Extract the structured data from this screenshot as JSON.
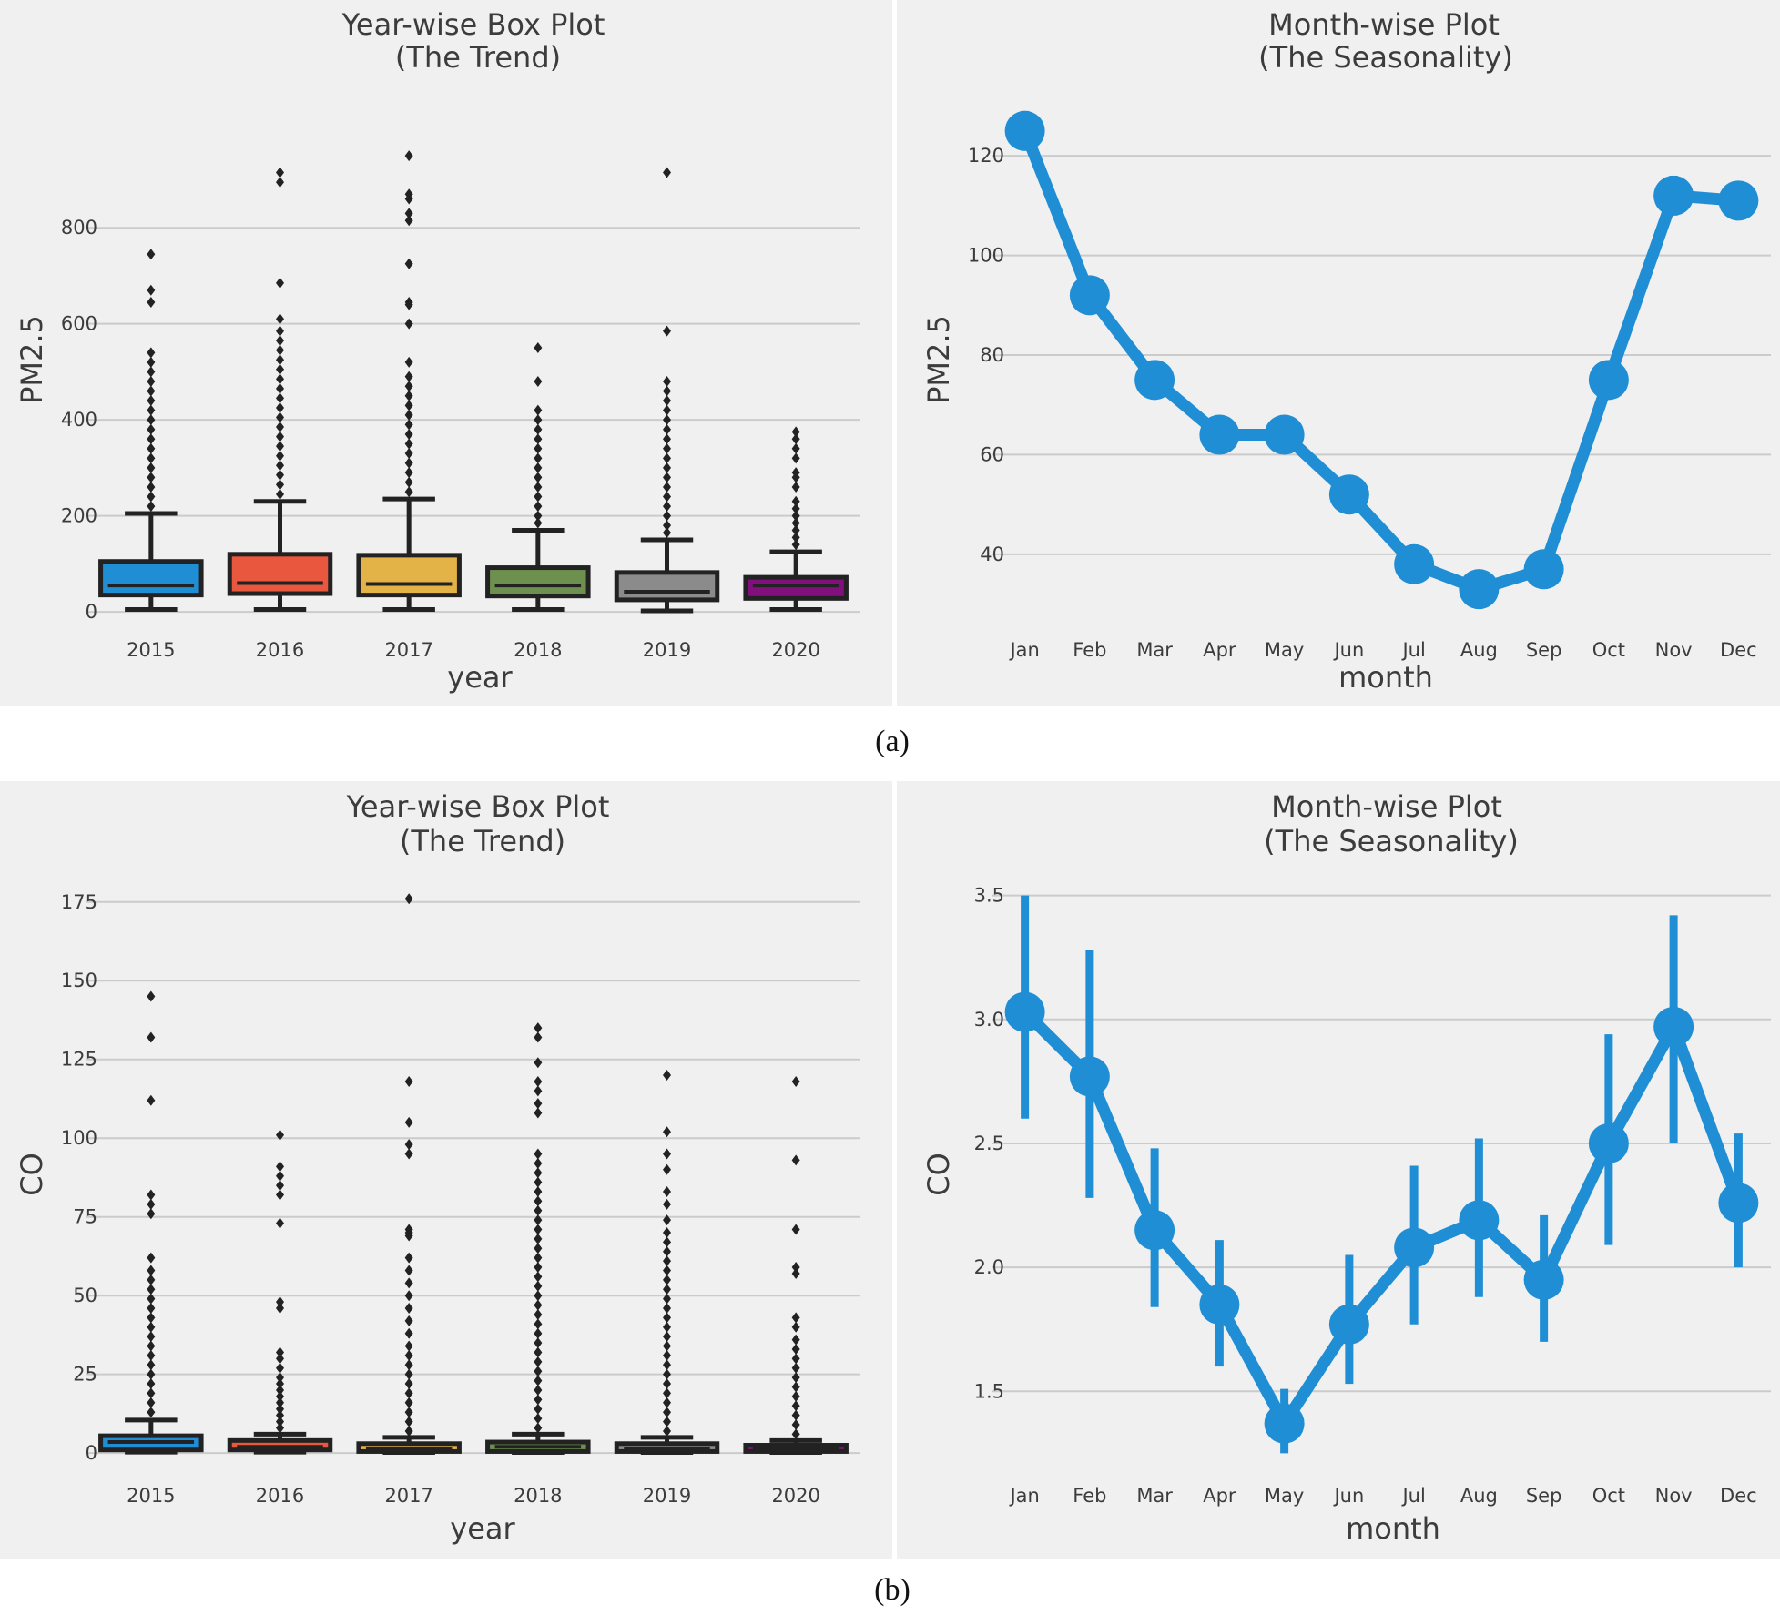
{
  "captions": [
    "(a)",
    "(b)"
  ],
  "colors": {
    "panel_bg": "#f0f0f0",
    "grid": "#cbcbcb",
    "text": "#3c3c3c",
    "line": "#1f8ed4",
    "box_edge": "#222222",
    "box_palette": [
      "#1f8ed4",
      "#e8573e",
      "#e3b347",
      "#6d904f",
      "#8b8b8b",
      "#810f7c"
    ]
  },
  "chart_data": [
    {
      "id": "a-box",
      "type": "box",
      "title": "Year-wise Box Plot",
      "subtitle": "(The Trend)",
      "xlabel": "year",
      "ylabel": "PM2.5",
      "categories": [
        "2015",
        "2016",
        "2017",
        "2018",
        "2019",
        "2020"
      ],
      "ylim": [
        -15,
        990
      ],
      "yticks": [
        0,
        200,
        400,
        600,
        800
      ],
      "boxes": [
        {
          "min": 5,
          "q1": 35,
          "median": 55,
          "q3": 105,
          "whisker_high": 205,
          "outliers": [
            220,
            240,
            260,
            280,
            300,
            320,
            340,
            360,
            380,
            400,
            420,
            440,
            460,
            480,
            500,
            520,
            540,
            645,
            670,
            745
          ]
        },
        {
          "min": 5,
          "q1": 38,
          "median": 60,
          "q3": 120,
          "whisker_high": 230,
          "outliers": [
            245,
            265,
            285,
            305,
            325,
            345,
            365,
            385,
            405,
            425,
            445,
            465,
            485,
            505,
            525,
            545,
            565,
            585,
            610,
            685,
            895,
            915
          ]
        },
        {
          "min": 5,
          "q1": 35,
          "median": 58,
          "q3": 118,
          "whisker_high": 235,
          "outliers": [
            250,
            270,
            290,
            310,
            330,
            350,
            370,
            390,
            410,
            430,
            450,
            470,
            490,
            520,
            600,
            640,
            645,
            725,
            815,
            830,
            860,
            870,
            950
          ]
        },
        {
          "min": 5,
          "q1": 33,
          "median": 55,
          "q3": 92,
          "whisker_high": 170,
          "outliers": [
            185,
            200,
            220,
            240,
            260,
            280,
            300,
            320,
            340,
            360,
            380,
            400,
            420,
            480,
            550
          ]
        },
        {
          "min": 2,
          "q1": 25,
          "median": 42,
          "q3": 82,
          "whisker_high": 150,
          "outliers": [
            165,
            180,
            200,
            220,
            240,
            260,
            280,
            300,
            320,
            340,
            360,
            380,
            400,
            420,
            440,
            460,
            480,
            585,
            915
          ]
        },
        {
          "min": 5,
          "q1": 28,
          "median": 55,
          "q3": 72,
          "whisker_high": 125,
          "outliers": [
            140,
            155,
            170,
            185,
            200,
            215,
            230,
            260,
            280,
            290,
            320,
            340,
            360,
            375
          ]
        }
      ]
    },
    {
      "id": "a-line",
      "type": "line",
      "title": "Month-wise Plot",
      "subtitle": "(The Seasonality)",
      "xlabel": "month",
      "ylabel": "PM2.5",
      "categories": [
        "Jan",
        "Feb",
        "Mar",
        "Apr",
        "May",
        "Jun",
        "Jul",
        "Aug",
        "Sep",
        "Oct",
        "Nov",
        "Dec"
      ],
      "values": [
        125,
        92,
        75,
        64,
        64,
        52,
        38,
        33,
        37,
        75,
        112,
        111
      ],
      "err_low": [
        121,
        90,
        73,
        62,
        62,
        50,
        36,
        31,
        35,
        73,
        108,
        109
      ],
      "err_high": [
        129,
        94,
        77,
        66,
        66,
        54,
        40,
        35,
        39,
        77,
        116,
        113
      ],
      "ylim": [
        27,
        133
      ],
      "yticks": [
        40,
        60,
        80,
        100,
        120
      ]
    },
    {
      "id": "b-box",
      "type": "box",
      "title": "Year-wise Box Plot",
      "subtitle": "(The Trend)",
      "xlabel": "year",
      "ylabel": "CO",
      "categories": [
        "2015",
        "2016",
        "2017",
        "2018",
        "2019",
        "2020"
      ],
      "ylim": [
        -4,
        181
      ],
      "yticks": [
        0,
        25,
        50,
        75,
        100,
        125,
        150,
        175
      ],
      "boxes": [
        {
          "min": 0.3,
          "q1": 1,
          "median": 3.5,
          "q3": 5.5,
          "whisker_high": 10.5,
          "outliers": [
            13,
            16,
            19,
            22,
            25,
            28,
            31,
            34,
            37,
            40,
            43,
            46,
            49,
            52,
            55,
            58,
            62,
            76,
            79,
            82,
            112,
            132,
            145
          ]
        },
        {
          "min": 0.3,
          "q1": 1,
          "median": 2,
          "q3": 4,
          "whisker_high": 6,
          "outliers": [
            8,
            10,
            12,
            14,
            16,
            18,
            20,
            22,
            24,
            27,
            30,
            32,
            46,
            48,
            73,
            82,
            85,
            88,
            91,
            101
          ]
        },
        {
          "min": 0.2,
          "q1": 0.5,
          "median": 1.5,
          "q3": 3,
          "whisker_high": 5,
          "outliers": [
            7,
            10,
            13,
            16,
            19,
            22,
            25,
            28,
            31,
            34,
            38,
            42,
            46,
            50,
            54,
            58,
            62,
            69,
            70,
            71,
            95,
            98,
            105,
            118,
            176
          ]
        },
        {
          "min": 0.2,
          "q1": 0.5,
          "median": 2,
          "q3": 3.5,
          "whisker_high": 6,
          "outliers": [
            8,
            11,
            14,
            17,
            20,
            23,
            26,
            29,
            32,
            35,
            38,
            41,
            44,
            47,
            50,
            53,
            56,
            59,
            62,
            65,
            68,
            71,
            74,
            77,
            80,
            83,
            86,
            89,
            92,
            95,
            108,
            111,
            115,
            118,
            124,
            132,
            135
          ]
        },
        {
          "min": 0.2,
          "q1": 0.5,
          "median": 1.5,
          "q3": 3,
          "whisker_high": 5,
          "outliers": [
            7,
            10,
            13,
            16,
            19,
            22,
            25,
            28,
            31,
            34,
            37,
            40,
            43,
            46,
            49,
            52,
            55,
            58,
            61,
            64,
            67,
            70,
            74,
            79,
            83,
            90,
            95,
            102,
            120
          ]
        },
        {
          "min": 0.2,
          "q1": 0.5,
          "median": 1.5,
          "q3": 2.5,
          "whisker_high": 4,
          "outliers": [
            6,
            9,
            12,
            15,
            18,
            21,
            24,
            27,
            30,
            33,
            36,
            40,
            43,
            57,
            59,
            71,
            93,
            118
          ]
        }
      ]
    },
    {
      "id": "b-line",
      "type": "line",
      "title": "Month-wise Plot",
      "subtitle": "(The Seasonality)",
      "xlabel": "month",
      "ylabel": "CO",
      "categories": [
        "Jan",
        "Feb",
        "Mar",
        "Apr",
        "May",
        "Jun",
        "Jul",
        "Aug",
        "Sep",
        "Oct",
        "Nov",
        "Dec"
      ],
      "values": [
        3.03,
        2.77,
        2.15,
        1.85,
        1.37,
        1.77,
        2.08,
        2.19,
        1.95,
        2.5,
        2.97,
        2.26
      ],
      "err_low": [
        2.6,
        2.28,
        1.84,
        1.6,
        1.25,
        1.53,
        1.77,
        1.88,
        1.7,
        2.09,
        2.5,
        2.0
      ],
      "err_high": [
        3.5,
        3.28,
        2.48,
        2.11,
        1.51,
        2.05,
        2.41,
        2.52,
        2.21,
        2.94,
        3.42,
        2.54
      ],
      "ylim": [
        1.2,
        3.55
      ],
      "yticks": [
        1.5,
        2.0,
        2.5,
        3.0,
        3.5
      ]
    }
  ]
}
